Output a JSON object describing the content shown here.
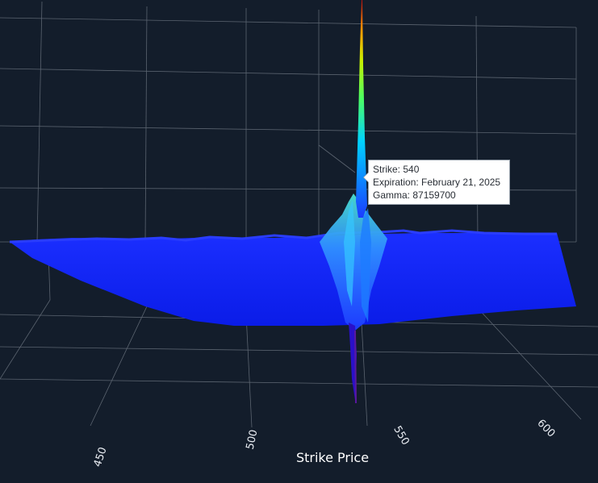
{
  "chart_data": {
    "type": "surface",
    "xlabel": "Strike Price",
    "x_ticks": [
      450,
      500,
      550,
      600
    ],
    "hover": {
      "strike_label": "Strike",
      "strike": 540,
      "expiration_label": "Expiration",
      "expiration": "February 21, 2025",
      "gamma_label": "Gamma",
      "gamma": 87159700
    },
    "peak": {
      "strike": 540,
      "expiration": "February 21, 2025",
      "gamma": 87159700
    },
    "colorscale": [
      "#1400ff",
      "#0039ff",
      "#00b7ff",
      "#00ffc0",
      "#7cff00",
      "#ffd000",
      "#ff5a00",
      "#c80000"
    ],
    "background": "#131d2b",
    "grid": true
  },
  "hover_text": {
    "strike_line": "Strike: 540",
    "expiration_line": "Expiration: February 21, 2025",
    "gamma_line": "Gamma: 87159700"
  }
}
